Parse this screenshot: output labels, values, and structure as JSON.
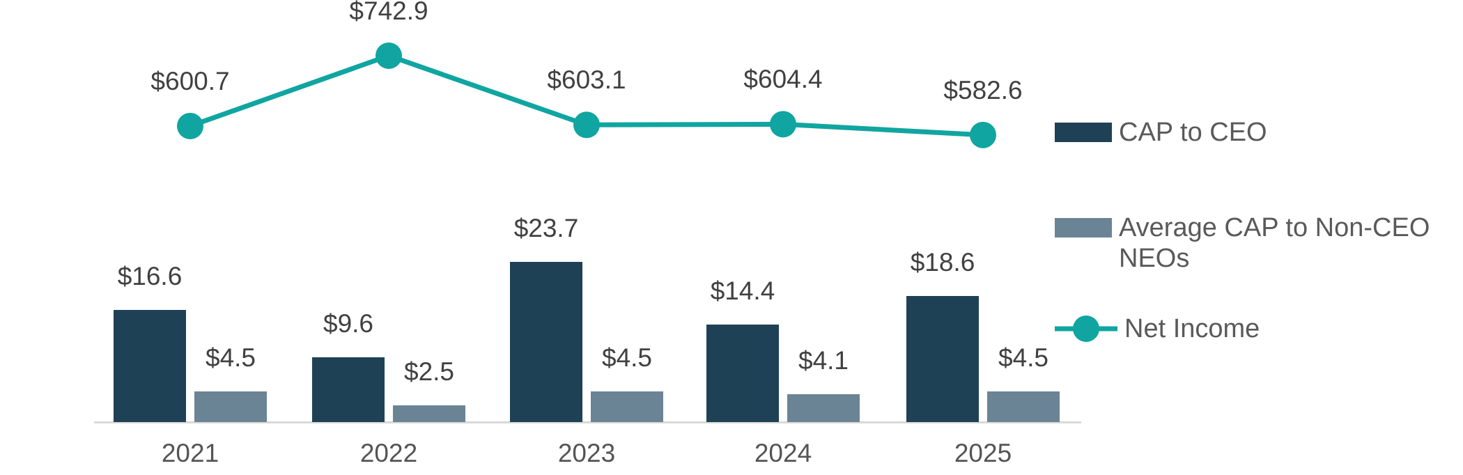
{
  "chart_data": {
    "type": "bar+line",
    "title": "",
    "categories": [
      "2021",
      "2022",
      "2023",
      "2024",
      "2025"
    ],
    "series": [
      {
        "name": "CAP to CEO",
        "type": "bar",
        "values": [
          16.6,
          9.6,
          23.7,
          14.4,
          18.6
        ],
        "labels": [
          "$16.6",
          "$9.6",
          "$23.7",
          "$14.4",
          "$18.6"
        ]
      },
      {
        "name": "Average CAP to Non-CEO NEOs",
        "type": "bar",
        "values": [
          4.5,
          2.5,
          4.5,
          4.1,
          4.5
        ],
        "labels": [
          "$4.5",
          "$2.5",
          "$4.5",
          "$4.1",
          "$4.5"
        ]
      },
      {
        "name": "Net Income",
        "type": "line",
        "values": [
          600.7,
          742.9,
          603.1,
          604.4,
          582.6
        ],
        "labels": [
          "$600.7",
          "$742.9",
          "$603.1",
          "$604.4",
          "$582.6"
        ]
      }
    ],
    "xlabel": "",
    "ylabel": "",
    "grid": false,
    "legend_position": "right",
    "data_labels": true
  },
  "legend": {
    "items": [
      {
        "label": "CAP to CEO",
        "marker": "bar-swatch"
      },
      {
        "label": "Average CAP to Non-CEO NEOs",
        "marker": "bar-swatch"
      },
      {
        "label": "Net Income",
        "marker": "line-marker"
      }
    ]
  },
  "colors": {
    "cap_to_ceo": "#1E4155",
    "avg_cap_non_ceo": "#6B8495",
    "net_income": "#10A5A0",
    "value_label_text": "#404040",
    "axis_label_text": "#545454",
    "legend_text": "#595959",
    "axis_line": "#D9D9D9"
  }
}
